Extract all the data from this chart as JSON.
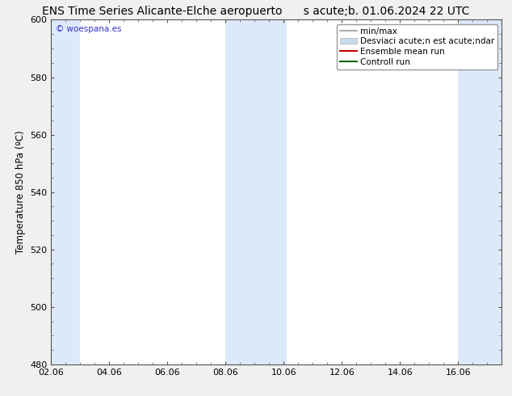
{
  "title_left": "ENS Time Series Alicante-Elche aeropuerto",
  "title_right": "s acute;b. 01.06.2024 22 UTC",
  "ylabel": "Temperature 850 hPa (ºC)",
  "ylim": [
    480,
    600
  ],
  "yticks": [
    480,
    500,
    520,
    540,
    560,
    580,
    600
  ],
  "xtick_labels": [
    "02.06",
    "04.06",
    "06.06",
    "08.06",
    "10.06",
    "12.06",
    "14.06",
    "16.06"
  ],
  "xtick_positions": [
    0,
    2,
    4,
    6,
    8,
    10,
    12,
    14
  ],
  "xlim": [
    0,
    15.5
  ],
  "background_color": "#f0f0f0",
  "plot_bg_color": "#ffffff",
  "shaded_bands": [
    {
      "x_start": -0.1,
      "x_end": 1.0,
      "color": "#dce9f8"
    },
    {
      "x_start": 6.0,
      "x_end": 8.1,
      "color": "#dce9f8"
    },
    {
      "x_start": 14.0,
      "x_end": 15.6,
      "color": "#dce9f8"
    }
  ],
  "watermark_text": "© woespana.es",
  "watermark_color": "#3333cc",
  "legend_entries": [
    {
      "label": "min/max",
      "color": "#aaaaaa",
      "style": "line"
    },
    {
      "label": "Desviaci acute;n est acute;ndar",
      "color": "#c8dcf0",
      "style": "bar"
    },
    {
      "label": "Ensemble mean run",
      "color": "#cc0000",
      "style": "line"
    },
    {
      "label": "Controll run",
      "color": "#006600",
      "style": "line"
    }
  ],
  "title_fontsize": 10,
  "axis_label_fontsize": 8.5,
  "tick_fontsize": 8,
  "legend_fontsize": 7.5
}
